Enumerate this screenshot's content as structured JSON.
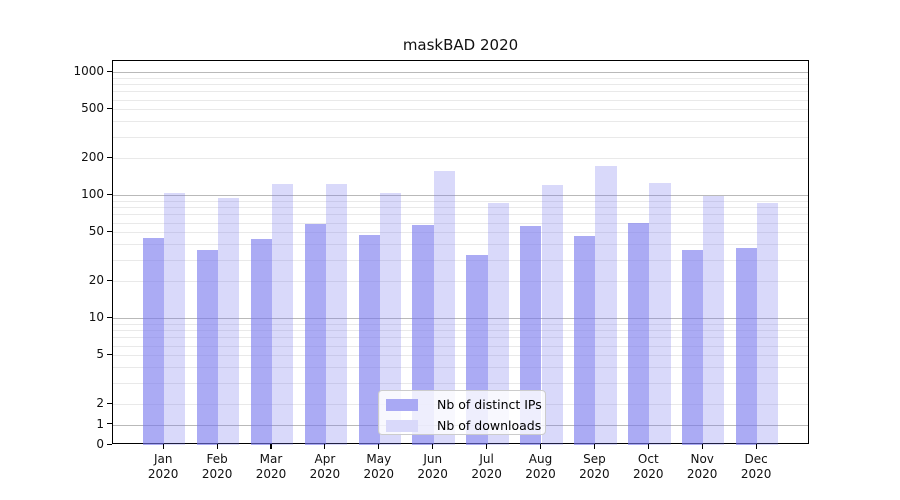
{
  "figure": {
    "title": "maskBAD 2020",
    "background": "#ffffff"
  },
  "chart_data": {
    "type": "bar",
    "title": "maskBAD 2020",
    "x_tick_months": [
      "Jan",
      "Feb",
      "Mar",
      "Apr",
      "May",
      "Jun",
      "Jul",
      "Aug",
      "Sep",
      "Oct",
      "Nov",
      "Dec"
    ],
    "x_tick_year": "2020",
    "categories": [
      "Jan 2020",
      "Feb 2020",
      "Mar 2020",
      "Apr 2020",
      "May 2020",
      "Jun 2020",
      "Jul 2020",
      "Aug 2020",
      "Sep 2020",
      "Oct 2020",
      "Nov 2020",
      "Dec 2020"
    ],
    "series": [
      {
        "name": "Nb of distinct IPs",
        "base_color": "#7777ee",
        "alpha": 0.62,
        "swatch_color": "#a9a9f4",
        "values": [
          45,
          36,
          44,
          59,
          48,
          57,
          33,
          56,
          47,
          60,
          36,
          37
        ]
      },
      {
        "name": "Nb of downloads",
        "base_color": "#7777ee",
        "alpha": 0.28,
        "swatch_color": "#d9d9fa",
        "values": [
          104,
          95,
          124,
          124,
          104,
          158,
          86,
          122,
          172,
          127,
          99,
          87
        ]
      }
    ],
    "yscale": "symlog",
    "ylim": [
      0,
      1250
    ],
    "y_ticks": [
      0,
      1,
      2,
      5,
      10,
      20,
      50,
      100,
      200,
      500,
      1000
    ],
    "y_minor_ticks": [
      3,
      4,
      6,
      7,
      8,
      9,
      30,
      40,
      60,
      70,
      80,
      90,
      300,
      400,
      600,
      700,
      800,
      900
    ],
    "grid": "on",
    "legend_position": "lower center",
    "major_grid_color": "#b9b9b9",
    "minor_grid_color": "#e9e9e9"
  }
}
